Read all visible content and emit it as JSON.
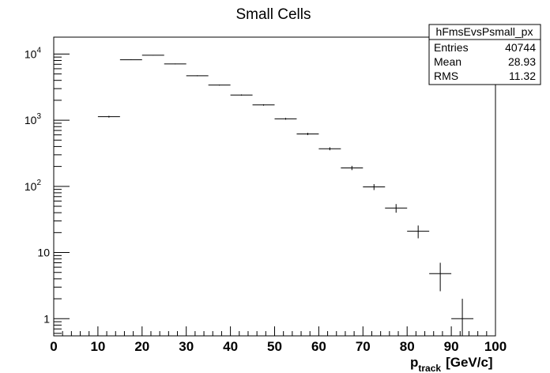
{
  "chart_data": {
    "type": "histogram",
    "title": "Small Cells",
    "xlabel_main": "p",
    "xlabel_sub": "track",
    "xlabel_unit": "[GeV/c]",
    "xlim": [
      0,
      100
    ],
    "ylim": [
      0.55,
      18000
    ],
    "yscale": "log",
    "x_ticks": [
      "0",
      "10",
      "20",
      "30",
      "40",
      "50",
      "60",
      "70",
      "80",
      "90",
      "100"
    ],
    "y_ticks": [
      {
        "value": 1,
        "base": "1",
        "exp": ""
      },
      {
        "value": 10,
        "base": "10",
        "exp": ""
      },
      {
        "value": 100,
        "base": "10",
        "exp": "2"
      },
      {
        "value": 1000,
        "base": "10",
        "exp": "3"
      },
      {
        "value": 10000,
        "base": "10",
        "exp": "4"
      }
    ],
    "bins": [
      {
        "x0": 10,
        "x1": 15,
        "y": 1130,
        "err": 34
      },
      {
        "x0": 15,
        "x1": 20,
        "y": 8200,
        "err": 90
      },
      {
        "x0": 20,
        "x1": 25,
        "y": 9600,
        "err": 98
      },
      {
        "x0": 25,
        "x1": 30,
        "y": 7100,
        "err": 84
      },
      {
        "x0": 30,
        "x1": 35,
        "y": 4700,
        "err": 69
      },
      {
        "x0": 35,
        "x1": 40,
        "y": 3400,
        "err": 58
      },
      {
        "x0": 40,
        "x1": 45,
        "y": 2400,
        "err": 49
      },
      {
        "x0": 45,
        "x1": 50,
        "y": 1700,
        "err": 41
      },
      {
        "x0": 50,
        "x1": 55,
        "y": 1050,
        "err": 32
      },
      {
        "x0": 55,
        "x1": 60,
        "y": 620,
        "err": 25
      },
      {
        "x0": 60,
        "x1": 65,
        "y": 370,
        "err": 19
      },
      {
        "x0": 65,
        "x1": 70,
        "y": 190,
        "err": 14
      },
      {
        "x0": 70,
        "x1": 75,
        "y": 98,
        "err": 10
      },
      {
        "x0": 75,
        "x1": 80,
        "y": 47,
        "err": 7
      },
      {
        "x0": 80,
        "x1": 85,
        "y": 21,
        "err": 4.6
      },
      {
        "x0": 85,
        "x1": 90,
        "y": 4.8,
        "err": 2.2
      },
      {
        "x0": 90,
        "x1": 95,
        "y": 1,
        "err": 1
      }
    ],
    "stats_box": {
      "name": "hFmsEvsPsmall_px",
      "rows": [
        {
          "label": "Entries",
          "value": "40744"
        },
        {
          "label": "Mean",
          "value": "28.93"
        },
        {
          "label": "RMS",
          "value": "11.32"
        }
      ]
    }
  }
}
